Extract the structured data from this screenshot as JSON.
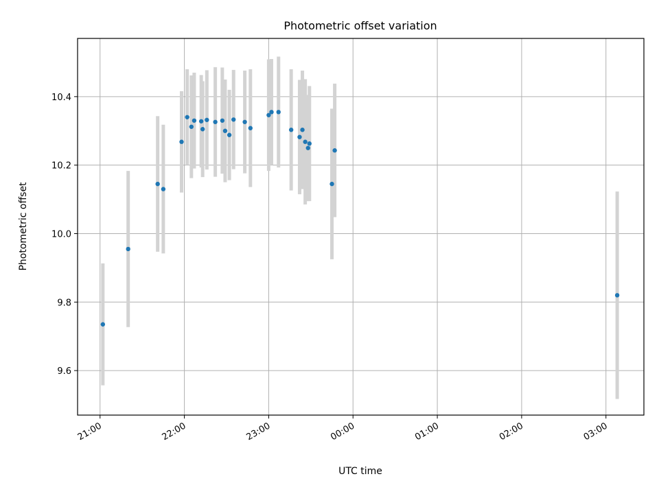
{
  "chart_data": {
    "type": "scatter",
    "title": "Photometric offset variation",
    "xlabel": "UTC time",
    "ylabel": "Photometric offset",
    "x_unit": "UTC time (HH:MM), observation night",
    "xlim": [
      "20:44",
      "03:27"
    ],
    "ylim": [
      9.47,
      10.57
    ],
    "x_ticks": [
      "21:00",
      "22:00",
      "23:00",
      "00:00",
      "01:00",
      "02:00",
      "03:00"
    ],
    "y_ticks": [
      9.6,
      9.8,
      10.0,
      10.2,
      10.4
    ],
    "grid": true,
    "colors": {
      "point": "#1f77b4",
      "errorbar": "#d3d3d3",
      "grid": "#b0b0b0"
    },
    "points": [
      {
        "time": "21:02",
        "y": 9.735,
        "yerr": 0.178
      },
      {
        "time": "21:20",
        "y": 9.955,
        "yerr": 0.228
      },
      {
        "time": "21:41",
        "y": 10.145,
        "yerr": 0.198
      },
      {
        "time": "21:45",
        "y": 10.13,
        "yerr": 0.188
      },
      {
        "time": "21:58",
        "y": 10.268,
        "yerr": 0.148
      },
      {
        "time": "22:02",
        "y": 10.34,
        "yerr": 0.14
      },
      {
        "time": "22:05",
        "y": 10.312,
        "yerr": 0.15
      },
      {
        "time": "22:07",
        "y": 10.33,
        "yerr": 0.14
      },
      {
        "time": "22:12",
        "y": 10.328,
        "yerr": 0.135
      },
      {
        "time": "22:13",
        "y": 10.305,
        "yerr": 0.14
      },
      {
        "time": "22:16",
        "y": 10.332,
        "yerr": 0.145
      },
      {
        "time": "22:22",
        "y": 10.326,
        "yerr": 0.16
      },
      {
        "time": "22:27",
        "y": 10.33,
        "yerr": 0.155
      },
      {
        "time": "22:29",
        "y": 10.3,
        "yerr": 0.15
      },
      {
        "time": "22:32",
        "y": 10.288,
        "yerr": 0.132
      },
      {
        "time": "22:35",
        "y": 10.333,
        "yerr": 0.145
      },
      {
        "time": "22:43",
        "y": 10.326,
        "yerr": 0.15
      },
      {
        "time": "22:47",
        "y": 10.308,
        "yerr": 0.172
      },
      {
        "time": "23:00",
        "y": 10.346,
        "yerr": 0.163
      },
      {
        "time": "23:02",
        "y": 10.355,
        "yerr": 0.155
      },
      {
        "time": "23:07",
        "y": 10.355,
        "yerr": 0.162
      },
      {
        "time": "23:16",
        "y": 10.303,
        "yerr": 0.177
      },
      {
        "time": "23:22",
        "y": 10.282,
        "yerr": 0.167
      },
      {
        "time": "23:24",
        "y": 10.303,
        "yerr": 0.173
      },
      {
        "time": "23:26",
        "y": 10.268,
        "yerr": 0.183
      },
      {
        "time": "23:28",
        "y": 10.25,
        "yerr": 0.155
      },
      {
        "time": "23:29",
        "y": 10.263,
        "yerr": 0.168
      },
      {
        "time": "23:45",
        "y": 10.145,
        "yerr": 0.22
      },
      {
        "time": "23:47",
        "y": 10.243,
        "yerr": 0.195
      },
      {
        "time": "03:08",
        "y": 9.82,
        "yerr": 0.303
      }
    ]
  }
}
